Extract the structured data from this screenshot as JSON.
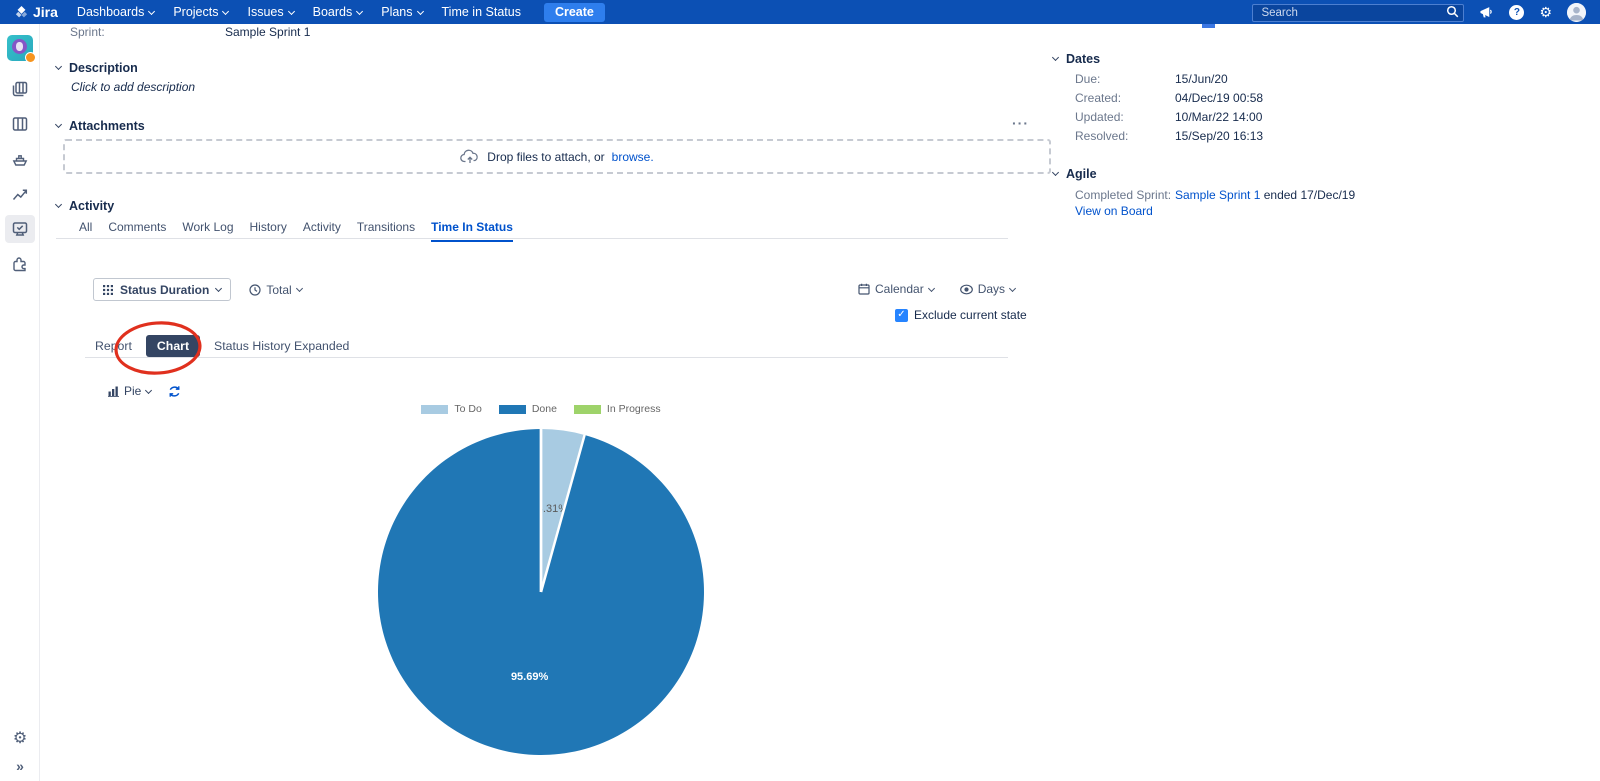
{
  "nav": {
    "logo_text": "Jira",
    "items": [
      {
        "label": "Dashboards"
      },
      {
        "label": "Projects"
      },
      {
        "label": "Issues"
      },
      {
        "label": "Boards"
      },
      {
        "label": "Plans"
      },
      {
        "label": "Time in Status"
      }
    ],
    "create_label": "Create",
    "search_placeholder": "Search"
  },
  "glyphs": {
    "gear": "⚙",
    "expand": "»",
    "more": "···",
    "check": "✓",
    "help": "?"
  },
  "issue": {
    "fields": [
      {
        "label": "Sprint:",
        "value": "Sample Sprint 1"
      }
    ],
    "description": {
      "title": "Description",
      "placeholder": "Click to add description"
    },
    "attachments": {
      "title": "Attachments",
      "drop_text": "Drop files to attach, or",
      "browse_label": "browse."
    },
    "activity": {
      "title": "Activity",
      "tabs": [
        "All",
        "Comments",
        "Work Log",
        "History",
        "Activity",
        "Transitions",
        "Time In Status"
      ],
      "active_tab": "Time In Status"
    }
  },
  "time_in_status": {
    "metric_label": "Status Duration",
    "aggregation_label": "Total",
    "calendar_label": "Calendar",
    "unit_label": "Days",
    "exclude_label": "Exclude current state",
    "exclude_checked": true,
    "view_tabs": [
      "Report",
      "Chart",
      "Status History Expanded"
    ],
    "active_view": "Chart",
    "chart_type_label": "Pie"
  },
  "chart_data": {
    "type": "pie",
    "categories": [
      "To Do",
      "Done",
      "In Progress"
    ],
    "values": [
      4.31,
      95.69,
      0
    ],
    "labels": [
      "4.31%",
      "95.69%",
      ""
    ],
    "colors": [
      "#a8cbe2",
      "#2077b5",
      "#9ed36a"
    ],
    "legend_position": "top",
    "title": ""
  },
  "details": {
    "dates": {
      "title": "Dates",
      "rows": [
        {
          "label": "Due:",
          "value": "15/Jun/20"
        },
        {
          "label": "Created:",
          "value": "04/Dec/19 00:58"
        },
        {
          "label": "Updated:",
          "value": "10/Mar/22 14:00"
        },
        {
          "label": "Resolved:",
          "value": "15/Sep/20 16:13"
        }
      ]
    },
    "agile": {
      "title": "Agile",
      "sprint_label": "Completed Sprint:",
      "sprint_link": "Sample Sprint 1",
      "sprint_suffix": "ended 17/Dec/19",
      "board_link": "View on Board"
    }
  }
}
